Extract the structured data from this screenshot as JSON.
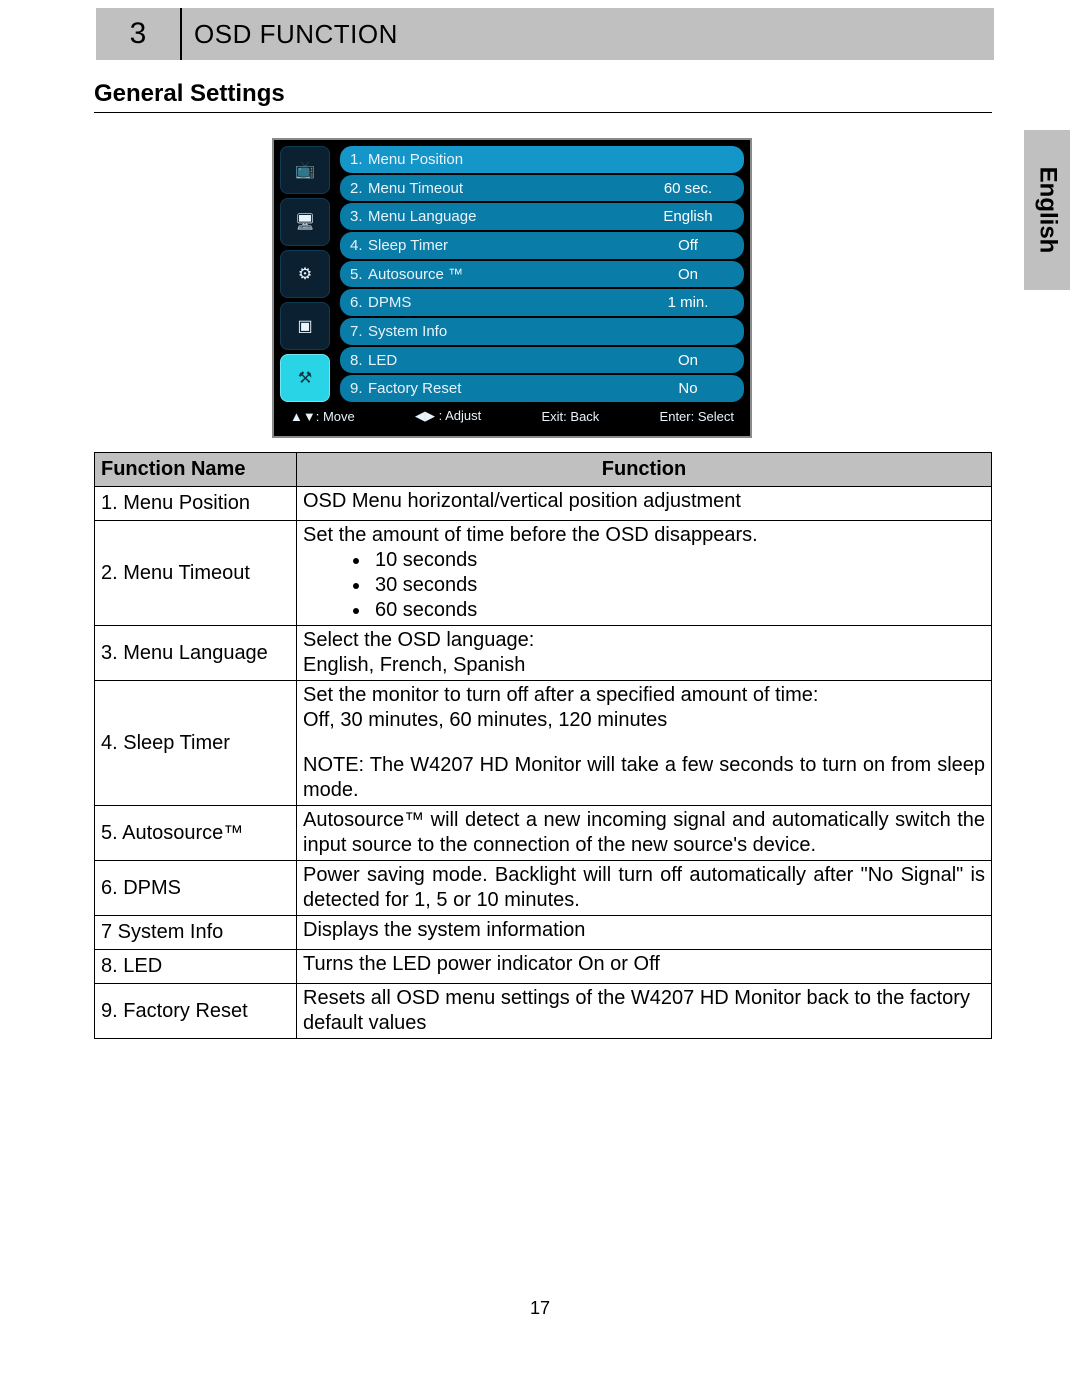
{
  "chapter": {
    "number": "3",
    "title": "OSD FUNCTION"
  },
  "section_title": "General Settings",
  "side_tab": "English",
  "page_number": "17",
  "osd": {
    "bg_color": "#000000",
    "frame_color": "#8a8a8a",
    "row_color": "#0a7ca8",
    "row_color_hl": "#1596c9",
    "icon_bg": "#0b2131",
    "icon_bg_active": "#29d4e6",
    "text_color": "#e8f3fb",
    "left_icons": [
      {
        "glyph": "📺",
        "name": "tv-icon",
        "active": false
      },
      {
        "glyph": "🖥",
        "name": "pc-icon",
        "active": false
      },
      {
        "glyph": "⚙",
        "name": "av-icon",
        "active": false
      },
      {
        "glyph": "▣",
        "name": "pip-icon",
        "active": false
      },
      {
        "glyph": "⚒",
        "name": "settings-icon",
        "active": true
      }
    ],
    "items": [
      {
        "n": "1.",
        "label": "Menu Position",
        "value": "",
        "hl": true
      },
      {
        "n": "2.",
        "label": "Menu Timeout",
        "value": "60 sec.",
        "hl": false
      },
      {
        "n": "3.",
        "label": "Menu Language",
        "value": "English",
        "hl": false
      },
      {
        "n": "4.",
        "label": "Sleep Timer",
        "value": "Off",
        "hl": false
      },
      {
        "n": "5.",
        "label": "Autosource ™",
        "value": "On",
        "hl": false
      },
      {
        "n": "6.",
        "label": "DPMS",
        "value": "1 min.",
        "hl": false
      },
      {
        "n": "7.",
        "label": "System Info",
        "value": "",
        "hl": false
      },
      {
        "n": "8.",
        "label": "LED",
        "value": "On",
        "hl": false
      },
      {
        "n": "9.",
        "label": "Factory Reset",
        "value": "No",
        "hl": false
      }
    ],
    "footer": {
      "move": "▲▼: Move",
      "adjust": "◀▶ : Adjust",
      "exit": "Exit: Back",
      "enter": "Enter: Select"
    }
  },
  "table": {
    "columns": {
      "name": "Function Name",
      "desc": "Function"
    },
    "rows": [
      {
        "name": "1. Menu Position",
        "desc_type": "plain",
        "desc": "OSD Menu horizontal/vertical position adjustment"
      },
      {
        "name": "2. Menu Timeout",
        "desc_type": "bullets",
        "lead": "Set the amount of time before the OSD disappears.",
        "bullets": [
          "10 seconds",
          "30 seconds",
          "60 seconds"
        ]
      },
      {
        "name": "3. Menu Language",
        "desc_type": "twoline",
        "line1": "Select the OSD language:",
        "line2": "English, French, Spanish"
      },
      {
        "name": "4. Sleep Timer",
        "desc_type": "sleep",
        "line1": "Set the monitor to turn off after a specified amount of time:",
        "line2": "Off, 30 minutes, 60 minutes, 120 minutes",
        "note": "NOTE: The W4207 HD Monitor will take a few seconds to turn on from sleep mode."
      },
      {
        "name": "5. Autosource™",
        "desc_type": "justify",
        "desc": "Autosource™ will detect a new incoming signal and automatically switch the input source to the connection of the new source's device."
      },
      {
        "name": "6. DPMS",
        "desc_type": "justify",
        "desc": "Power saving mode. Backlight will turn off automatically after \"No Signal\" is detected for 1, 5 or 10 minutes."
      },
      {
        "name": "7 System Info",
        "desc_type": "plain",
        "desc": "Displays the system information"
      },
      {
        "name": "8. LED",
        "desc_type": "plain",
        "desc": "Turns the LED power indicator On or Off"
      },
      {
        "name": "9. Factory Reset",
        "desc_type": "plain",
        "desc": "Resets all OSD menu settings of the W4207 HD Monitor back to the factory default values"
      }
    ]
  }
}
